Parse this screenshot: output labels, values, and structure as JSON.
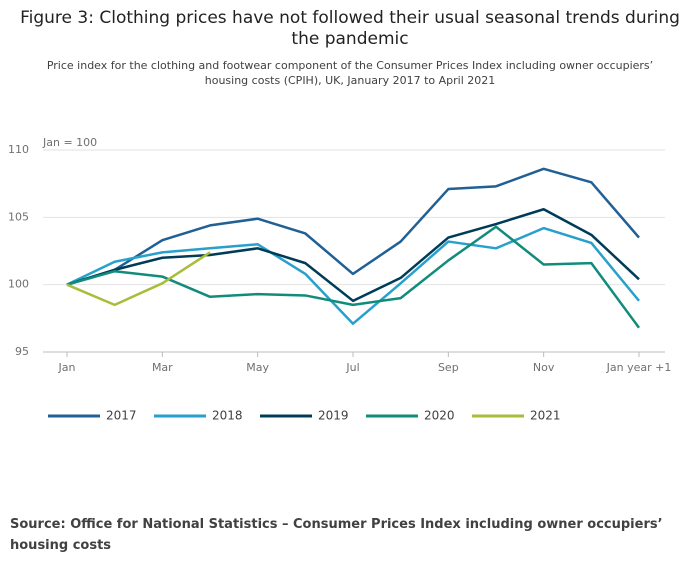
{
  "chart_data": {
    "type": "line",
    "title": "Figure 3: Clothing prices have not followed their usual seasonal trends during the pandemic",
    "subtitle": "Price index for the clothing and footwear component of the Consumer Prices Index including owner occupiers’ housing costs (CPIH), UK, January 2017 to April 2021",
    "y_annotation": "Jan = 100",
    "source": "Source: Office for National Statistics – Consumer Prices Index including owner occupiers’ housing costs",
    "categories": [
      "Jan",
      null,
      "Mar",
      null,
      "May",
      null,
      "Jul",
      null,
      "Sep",
      null,
      "Nov",
      null,
      "Jan year +1"
    ],
    "series": [
      {
        "name": "2017",
        "color": "#206095",
        "values": [
          100,
          101.1,
          103.3,
          104.4,
          104.9,
          103.8,
          100.8,
          103.2,
          107.1,
          107.3,
          108.6,
          107.6,
          103.5
        ]
      },
      {
        "name": "2018",
        "color": "#27a0cc",
        "values": [
          100,
          101.7,
          102.4,
          102.7,
          103.0,
          100.8,
          97.1,
          100.1,
          103.2,
          102.7,
          104.2,
          103.1,
          98.8
        ]
      },
      {
        "name": "2019",
        "color": "#003c57",
        "values": [
          100,
          101.1,
          102.0,
          102.2,
          102.7,
          101.6,
          98.8,
          100.5,
          103.5,
          104.5,
          105.6,
          103.7,
          100.4
        ]
      },
      {
        "name": "2020",
        "color": "#118c7b",
        "values": [
          100,
          101.0,
          100.6,
          99.1,
          99.3,
          99.2,
          98.5,
          99.0,
          101.8,
          104.3,
          101.5,
          101.6,
          96.8
        ]
      },
      {
        "name": "2021",
        "color": "#a8bd3a",
        "values": [
          100,
          98.5,
          100.1,
          102.4,
          null,
          null,
          null,
          null,
          null,
          null,
          null,
          null,
          null
        ]
      }
    ],
    "ylim": [
      95,
      110
    ],
    "yticks": [
      95,
      100,
      105,
      110
    ],
    "grid": true,
    "legend": "bottom"
  }
}
